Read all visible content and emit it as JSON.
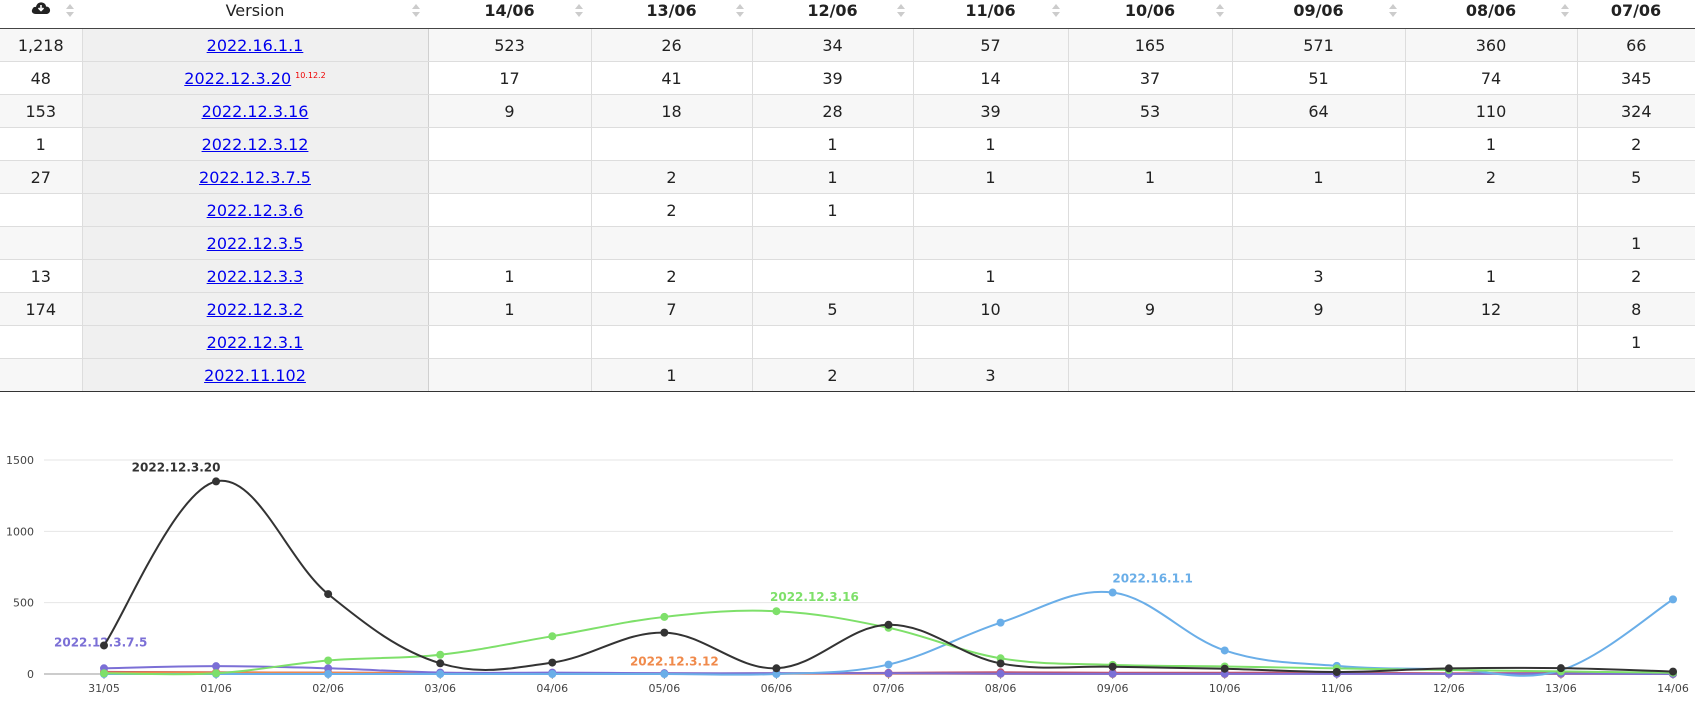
{
  "table": {
    "version_header": "Version",
    "date_headers": [
      "14/06",
      "13/06",
      "12/06",
      "11/06",
      "10/06",
      "09/06",
      "08/06",
      "07/06"
    ],
    "rows": [
      {
        "total": "1,218",
        "version": "2022.16.1.1",
        "tag": "",
        "cells": [
          "523",
          "26",
          "34",
          "57",
          "165",
          "571",
          "360",
          "66"
        ]
      },
      {
        "total": "48",
        "version": "2022.12.3.20",
        "tag": "10.12.2",
        "cells": [
          "17",
          "41",
          "39",
          "14",
          "37",
          "51",
          "74",
          "345"
        ]
      },
      {
        "total": "153",
        "version": "2022.12.3.16",
        "tag": "",
        "cells": [
          "9",
          "18",
          "28",
          "39",
          "53",
          "64",
          "110",
          "324"
        ]
      },
      {
        "total": "1",
        "version": "2022.12.3.12",
        "tag": "",
        "cells": [
          "",
          "",
          "1",
          "1",
          "",
          "",
          "1",
          "2"
        ]
      },
      {
        "total": "27",
        "version": "2022.12.3.7.5",
        "tag": "",
        "cells": [
          "",
          "2",
          "1",
          "1",
          "1",
          "1",
          "2",
          "5"
        ]
      },
      {
        "total": "",
        "version": "2022.12.3.6",
        "tag": "",
        "cells": [
          "",
          "2",
          "1",
          "",
          "",
          "",
          "",
          ""
        ]
      },
      {
        "total": "",
        "version": "2022.12.3.5",
        "tag": "",
        "cells": [
          "",
          "",
          "",
          "",
          "",
          "",
          "",
          "1"
        ]
      },
      {
        "total": "13",
        "version": "2022.12.3.3",
        "tag": "",
        "cells": [
          "1",
          "2",
          "",
          "1",
          "",
          "3",
          "1",
          "2"
        ]
      },
      {
        "total": "174",
        "version": "2022.12.3.2",
        "tag": "",
        "cells": [
          "1",
          "7",
          "5",
          "10",
          "9",
          "9",
          "12",
          "8"
        ]
      },
      {
        "total": "",
        "version": "2022.12.3.1",
        "tag": "",
        "cells": [
          "",
          "",
          "",
          "",
          "",
          "",
          "",
          "1"
        ]
      },
      {
        "total": "",
        "version": "2022.11.102",
        "tag": "",
        "cells": [
          "",
          "1",
          "2",
          "3",
          "",
          "",
          "",
          ""
        ]
      }
    ]
  },
  "chart_data": {
    "type": "line",
    "x": [
      "31/05",
      "01/06",
      "02/06",
      "03/06",
      "04/06",
      "05/06",
      "06/06",
      "07/06",
      "08/06",
      "09/06",
      "10/06",
      "11/06",
      "12/06",
      "13/06",
      "14/06"
    ],
    "ylim": [
      0,
      1500
    ],
    "yticks": [
      0,
      500,
      1000,
      1500
    ],
    "grid": true,
    "series": [
      {
        "name": "2022.12.3.20",
        "color": "#333333",
        "label_at": 1,
        "values": [
          200,
          1350,
          560,
          75,
          80,
          290,
          40,
          345,
          74,
          51,
          37,
          14,
          39,
          41,
          17
        ]
      },
      {
        "name": "2022.12.3.16",
        "color": "#7ee06a",
        "label_at": 6,
        "values": [
          5,
          5,
          95,
          135,
          265,
          400,
          440,
          324,
          110,
          64,
          53,
          39,
          28,
          18,
          9
        ]
      },
      {
        "name": "2022.16.1.1",
        "color": "#6aaee8",
        "label_at": 9,
        "values": [
          0,
          0,
          0,
          0,
          0,
          0,
          0,
          66,
          360,
          571,
          165,
          57,
          34,
          26,
          523
        ]
      },
      {
        "name": "2022.12.3.7.5",
        "color": "#7b6fd6",
        "label_at": 0,
        "values": [
          40,
          55,
          40,
          10,
          10,
          5,
          5,
          5,
          2,
          1,
          1,
          1,
          1,
          2,
          0
        ]
      },
      {
        "name": "2022.12.3.12",
        "color": "#f08a4b",
        "label_at": 5,
        "values": [
          10,
          10,
          8,
          5,
          5,
          3,
          2,
          2,
          1,
          0,
          0,
          1,
          1,
          0,
          0
        ]
      },
      {
        "name": "",
        "color": "#c0526e",
        "label_at": -1,
        "values": [
          15,
          12,
          10,
          8,
          6,
          5,
          5,
          8,
          12,
          9,
          9,
          10,
          5,
          7,
          1
        ]
      }
    ]
  }
}
